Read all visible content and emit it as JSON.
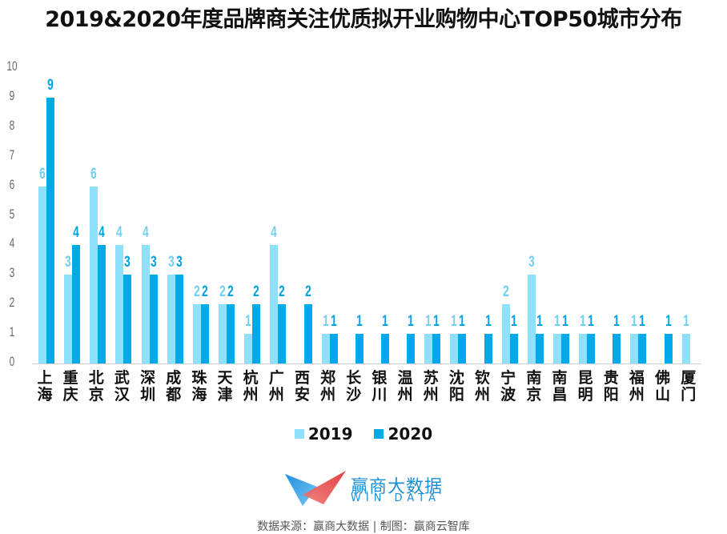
{
  "title": "2019&2020年度品牌商关注优质拟开业购物中心TOP50城市分布",
  "legend": {
    "items": [
      {
        "label": "2019",
        "color": "#8fe1fb"
      },
      {
        "label": "2020",
        "color": "#00a9e8"
      }
    ]
  },
  "y_ticks": [
    "10",
    "9",
    "8",
    "7",
    "6",
    "5",
    "4",
    "3",
    "2",
    "1",
    "0"
  ],
  "logo": {
    "cn": "赢商大数据",
    "en": "WIN DATA",
    "icon": "win-data-logo-icon"
  },
  "source": "数据来源：赢商大数据 | 制图：赢商云智库",
  "chart_data": {
    "type": "bar",
    "title": "2019&2020年度品牌商关注优质拟开业购物中心TOP50城市分布",
    "xlabel": "",
    "ylabel": "",
    "ylim": [
      0,
      10
    ],
    "yticks": [
      0,
      1,
      2,
      3,
      4,
      5,
      6,
      7,
      8,
      9,
      10
    ],
    "grid": false,
    "legend_position": "bottom",
    "categories": [
      "上海",
      "重庆",
      "北京",
      "武汉",
      "深圳",
      "成都",
      "珠海",
      "天津",
      "杭州",
      "广州",
      "西安",
      "郑州",
      "长沙",
      "银川",
      "温州",
      "苏州",
      "沈阳",
      "钦州",
      "宁波",
      "南京",
      "南昌",
      "昆明",
      "贵阳",
      "福州",
      "佛山",
      "厦门"
    ],
    "series": [
      {
        "name": "2019",
        "color": "#8fe1fb",
        "values": [
          6,
          3,
          6,
          4,
          4,
          3,
          2,
          2,
          1,
          4,
          0,
          1,
          0,
          0,
          0,
          1,
          1,
          0,
          2,
          3,
          1,
          1,
          0,
          1,
          0,
          1
        ]
      },
      {
        "name": "2020",
        "color": "#00a9e8",
        "values": [
          9,
          4,
          4,
          3,
          3,
          3,
          2,
          2,
          2,
          2,
          2,
          1,
          1,
          1,
          1,
          1,
          1,
          1,
          1,
          1,
          1,
          1,
          1,
          1,
          1,
          0
        ]
      }
    ]
  }
}
